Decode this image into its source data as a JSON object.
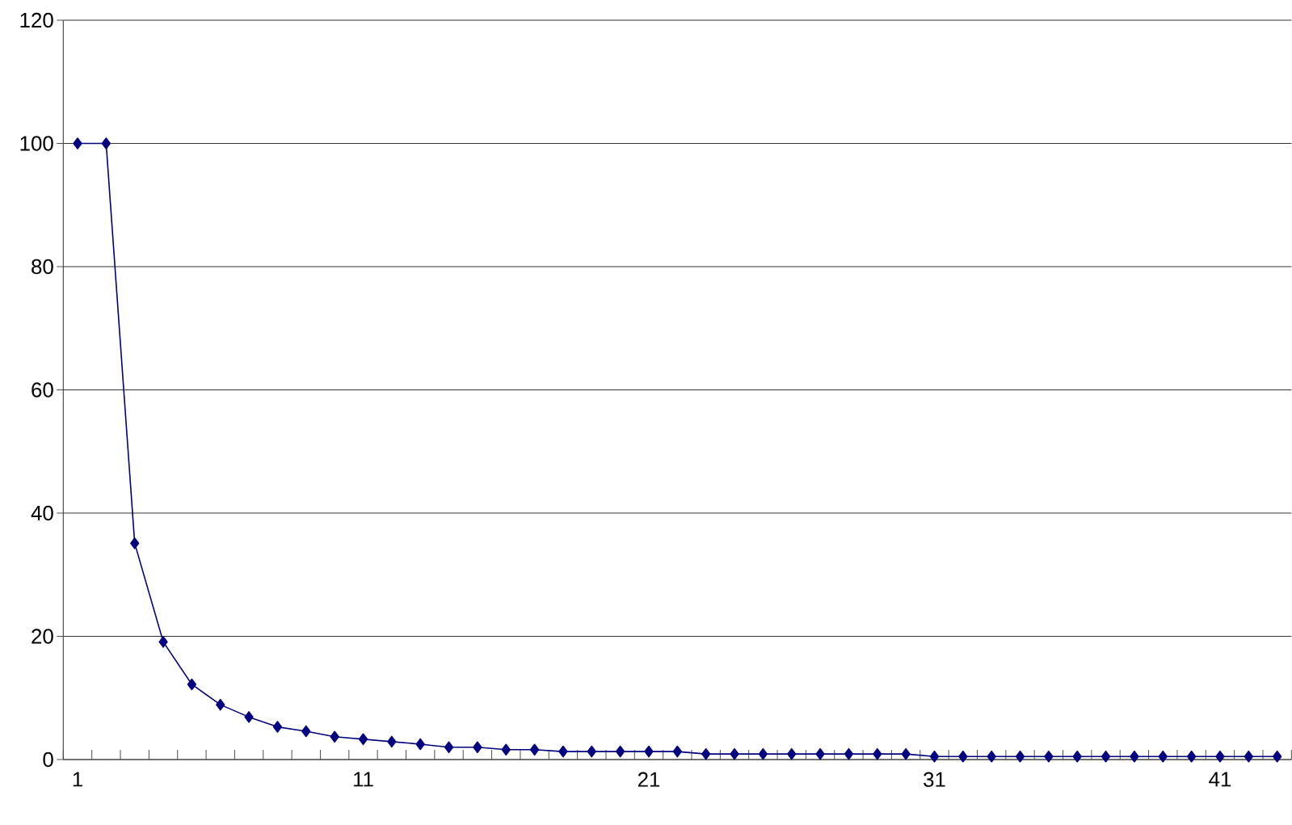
{
  "chart_data": {
    "type": "line",
    "categories": [
      "1",
      null,
      null,
      null,
      null,
      null,
      null,
      null,
      null,
      null,
      "11",
      null,
      null,
      null,
      null,
      null,
      null,
      null,
      null,
      null,
      "21",
      null,
      null,
      null,
      null,
      null,
      null,
      null,
      null,
      null,
      "31",
      null,
      null,
      null,
      null,
      null,
      null,
      null,
      null,
      null,
      "41",
      null,
      null
    ],
    "series": [
      {
        "color": "#000080",
        "values": [
          100,
          100,
          35.1,
          19.1,
          12.2,
          8.9,
          6.9,
          5.3,
          4.6,
          3.7,
          3.3,
          2.9,
          2.5,
          2.0,
          2.0,
          1.6,
          1.6,
          1.3,
          1.3,
          1.3,
          1.3,
          1.3,
          0.9,
          0.9,
          0.9,
          0.9,
          0.9,
          0.9,
          0.9,
          0.9,
          0.5,
          0.5,
          0.5,
          0.5,
          0.5,
          0.5,
          0.5,
          0.5,
          0.5,
          0.5,
          0.5,
          0.5,
          0.5
        ]
      }
    ],
    "ylim": [
      0,
      120
    ],
    "yticks": [
      0,
      20,
      40,
      60,
      80,
      100,
      120
    ],
    "grid": "y",
    "marker": "diamond",
    "line_style": "solid"
  }
}
